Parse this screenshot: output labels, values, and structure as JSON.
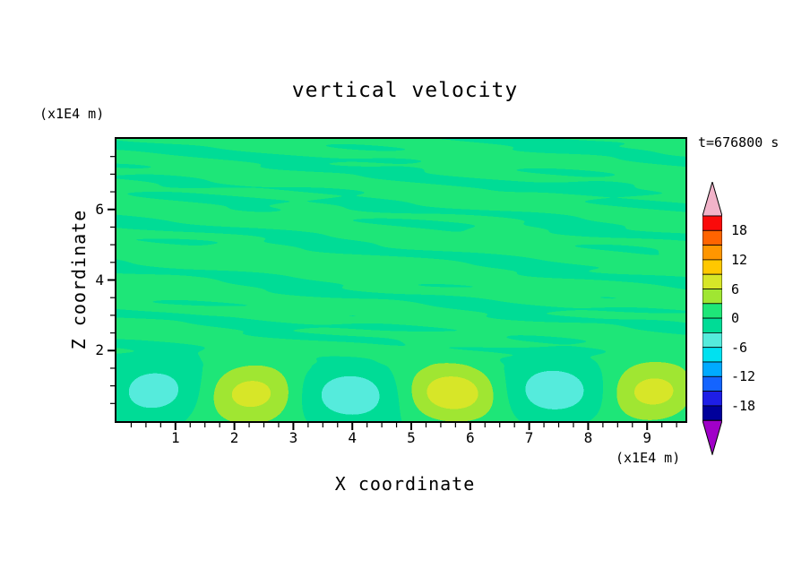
{
  "chart_data": {
    "type": "filled_contour",
    "title": "vertical velocity",
    "annotation": "t=676800 s",
    "x_axis": {
      "label": "X coordinate",
      "unit": "(x1E4 m)",
      "range": [
        0,
        9.65
      ],
      "major_ticks": [
        1,
        2,
        3,
        4,
        5,
        6,
        7,
        8,
        9
      ],
      "minor_tick_step": 0.25
    },
    "z_axis": {
      "label": "Z coordinate",
      "unit": "(x1E4 m)",
      "range": [
        0,
        8
      ],
      "major_ticks": [
        2,
        4,
        6
      ],
      "minor_tick_step": 0.5
    },
    "contour_interval": 3,
    "levels": [
      -21,
      -18,
      -15,
      -12,
      -9,
      -6,
      -3,
      0,
      3,
      6,
      9,
      12,
      15,
      18,
      21
    ],
    "colorbar": {
      "labels": [
        "18",
        "12",
        "6",
        "0",
        "-6",
        "-12",
        "-18"
      ],
      "labeled_boundary_values": [
        18,
        12,
        6,
        0,
        -6,
        -12,
        -18
      ],
      "colors_low_to_high": [
        "#A000C8",
        "#00009B",
        "#1E1EE6",
        "#1464FF",
        "#00AAFF",
        "#00E1F0",
        "#55EBDC",
        "#00DC96",
        "#1EE678",
        "#A0E632",
        "#D7E628",
        "#FFC800",
        "#FF9600",
        "#FF6400",
        "#FA0A0A",
        "#F2B3C9"
      ]
    },
    "field_model": {
      "mean": 0.5,
      "streaks": [
        {
          "a": 1.0,
          "fx": 0.9,
          "fz": 5.3,
          "p": 0.4
        },
        {
          "a": 0.8,
          "fx": 1.8,
          "fz": 9.1,
          "p": 2.1
        },
        {
          "a": 0.6,
          "fx": 1.25,
          "fz": 14.7,
          "p": 4.2
        },
        {
          "a": 0.45,
          "fx": 2.6,
          "fz": 3.9,
          "p": 1.1
        },
        {
          "a": 0.35,
          "fx": 0.5,
          "fz": 21.0,
          "p": 3.3
        }
      ],
      "streak_mod": {
        "a": 0.45,
        "fx1": 0.55,
        "fz1": 3.1,
        "p1": 1.0,
        "fx2": 1.3,
        "fz2": 2.2
      },
      "streak_gain": 1.35,
      "streak_clamp_lo": -2.9,
      "streak_clamp_hi": 2.4,
      "streak_env_z0": 1.5,
      "streak_env_z1": 2.6,
      "surface_ripple_amp": 0.55,
      "blob_amp": 7.2,
      "blob_x_peak": 2.3,
      "blob_wavelength": 3.4,
      "blob_z_center": 0.8,
      "blob_z_width": 0.8,
      "blob_neg_scale": 0.75
    },
    "features": {
      "summary": "Weak streaky vertical-velocity variability (about -3 to +3) fills the domain above z=2; near the surface a wave train of cells alternates: updraft maxima (~+8, yellow-green) centered near x=2.3, 5.7 and 9.1, and downdraft minima (~-5, pale cyan) near x=0.6, 4.0 and 7.4 at z~0.8."
    }
  }
}
